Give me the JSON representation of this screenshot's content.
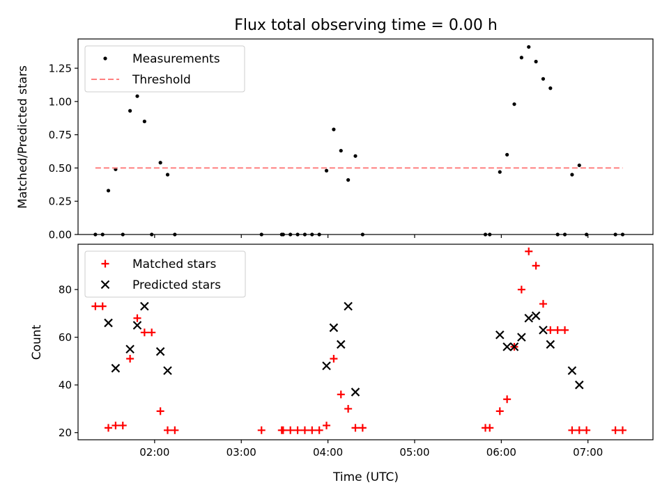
{
  "chart_data": [
    {
      "type": "scatter",
      "title": "Flux total observing time = 0.00 h",
      "xlabel": "",
      "ylabel": "Matched/Predicted stars",
      "xlim": [
        "01:07",
        "07:45"
      ],
      "ylim": [
        0,
        1.47
      ],
      "x_tick_labels": [
        "",
        "",
        "",
        "",
        "",
        ""
      ],
      "y_tick_labels": [
        "0.00",
        "0.25",
        "0.50",
        "0.75",
        "1.00",
        "1.25"
      ],
      "y_ticks": [
        0,
        0.25,
        0.5,
        0.75,
        1.0,
        1.25
      ],
      "legend": {
        "position": "top-left",
        "entries": [
          "Measurements",
          "Threshold"
        ]
      },
      "grid": false,
      "series": [
        {
          "name": "Measurements",
          "marker": "dot",
          "color": "#000000",
          "points": [
            [
              "01:19",
              0
            ],
            [
              "01:24",
              0
            ],
            [
              "01:28",
              0.33
            ],
            [
              "01:33",
              0.49
            ],
            [
              "01:38",
              0
            ],
            [
              "01:43",
              0.93
            ],
            [
              "01:48",
              1.04
            ],
            [
              "01:53",
              0.85
            ],
            [
              "01:58",
              0
            ],
            [
              "02:04",
              0.54
            ],
            [
              "02:09",
              0.45
            ],
            [
              "02:14",
              0
            ],
            [
              "03:14",
              0
            ],
            [
              "03:28",
              0
            ],
            [
              "03:29",
              0
            ],
            [
              "03:34",
              0
            ],
            [
              "03:39",
              0
            ],
            [
              "03:44",
              0
            ],
            [
              "03:49",
              0
            ],
            [
              "03:54",
              0
            ],
            [
              "03:59",
              0.48
            ],
            [
              "04:04",
              0.79
            ],
            [
              "04:09",
              0.63
            ],
            [
              "04:14",
              0.41
            ],
            [
              "04:19",
              0.59
            ],
            [
              "04:24",
              0
            ],
            [
              "05:49",
              0
            ],
            [
              "05:52",
              0
            ],
            [
              "05:59",
              0.47
            ],
            [
              "06:04",
              0.6
            ],
            [
              "06:09",
              0.98
            ],
            [
              "06:14",
              1.33
            ],
            [
              "06:19",
              1.41
            ],
            [
              "06:24",
              1.3
            ],
            [
              "06:29",
              1.17
            ],
            [
              "06:34",
              1.1
            ],
            [
              "06:39",
              0
            ],
            [
              "06:44",
              0
            ],
            [
              "06:49",
              0.45
            ],
            [
              "06:54",
              0.52
            ],
            [
              "06:59",
              0
            ],
            [
              "07:19",
              0
            ],
            [
              "07:24",
              0
            ]
          ]
        },
        {
          "name": "Threshold",
          "marker": "dashed-line",
          "color": "#ff7f7f",
          "points": [
            [
              "01:19",
              0.5
            ],
            [
              "07:24",
              0.5
            ]
          ]
        }
      ]
    },
    {
      "type": "scatter",
      "title": "",
      "xlabel": "Time (UTC)",
      "ylabel": "Count",
      "xlim": [
        "01:07",
        "07:45"
      ],
      "ylim": [
        17,
        99
      ],
      "x_tick_labels": [
        "02:00",
        "03:00",
        "04:00",
        "05:00",
        "06:00",
        "07:00"
      ],
      "x_ticks": [
        "02:00",
        "03:00",
        "04:00",
        "05:00",
        "06:00",
        "07:00"
      ],
      "y_tick_labels": [
        "20",
        "40",
        "60",
        "80"
      ],
      "y_ticks": [
        20,
        40,
        60,
        80
      ],
      "legend": {
        "position": "top-left",
        "entries": [
          "Matched stars",
          "Predicted stars"
        ]
      },
      "grid": false,
      "series": [
        {
          "name": "Matched stars",
          "marker": "plus",
          "color": "#ff0000",
          "points": [
            [
              "01:19",
              73
            ],
            [
              "01:24",
              73
            ],
            [
              "01:28",
              22
            ],
            [
              "01:33",
              23
            ],
            [
              "01:38",
              23
            ],
            [
              "01:43",
              51
            ],
            [
              "01:48",
              68
            ],
            [
              "01:53",
              62
            ],
            [
              "01:58",
              62
            ],
            [
              "02:04",
              29
            ],
            [
              "02:09",
              21
            ],
            [
              "02:14",
              21
            ],
            [
              "03:14",
              21
            ],
            [
              "03:28",
              21
            ],
            [
              "03:29",
              21
            ],
            [
              "03:34",
              21
            ],
            [
              "03:39",
              21
            ],
            [
              "03:44",
              21
            ],
            [
              "03:49",
              21
            ],
            [
              "03:54",
              21
            ],
            [
              "03:59",
              23
            ],
            [
              "04:04",
              51
            ],
            [
              "04:09",
              36
            ],
            [
              "04:14",
              30
            ],
            [
              "04:19",
              22
            ],
            [
              "04:24",
              22
            ],
            [
              "05:49",
              22
            ],
            [
              "05:52",
              22
            ],
            [
              "05:59",
              29
            ],
            [
              "06:04",
              34
            ],
            [
              "06:09",
              56
            ],
            [
              "06:14",
              80
            ],
            [
              "06:19",
              96
            ],
            [
              "06:24",
              90
            ],
            [
              "06:29",
              74
            ],
            [
              "06:34",
              63
            ],
            [
              "06:39",
              63
            ],
            [
              "06:44",
              63
            ],
            [
              "06:49",
              21
            ],
            [
              "06:54",
              21
            ],
            [
              "06:59",
              21
            ],
            [
              "07:19",
              21
            ],
            [
              "07:24",
              21
            ]
          ]
        },
        {
          "name": "Predicted stars",
          "marker": "x",
          "color": "#000000",
          "points": [
            [
              "01:28",
              66
            ],
            [
              "01:33",
              47
            ],
            [
              "01:43",
              55
            ],
            [
              "01:48",
              65
            ],
            [
              "01:53",
              73
            ],
            [
              "02:04",
              54
            ],
            [
              "02:09",
              46
            ],
            [
              "03:59",
              48
            ],
            [
              "04:04",
              64
            ],
            [
              "04:09",
              57
            ],
            [
              "04:14",
              73
            ],
            [
              "04:19",
              37
            ],
            [
              "05:59",
              61
            ],
            [
              "06:04",
              56
            ],
            [
              "06:09",
              56
            ],
            [
              "06:14",
              60
            ],
            [
              "06:19",
              68
            ],
            [
              "06:24",
              69
            ],
            [
              "06:29",
              63
            ],
            [
              "06:34",
              57
            ],
            [
              "06:49",
              46
            ],
            [
              "06:54",
              40
            ]
          ]
        }
      ]
    }
  ]
}
